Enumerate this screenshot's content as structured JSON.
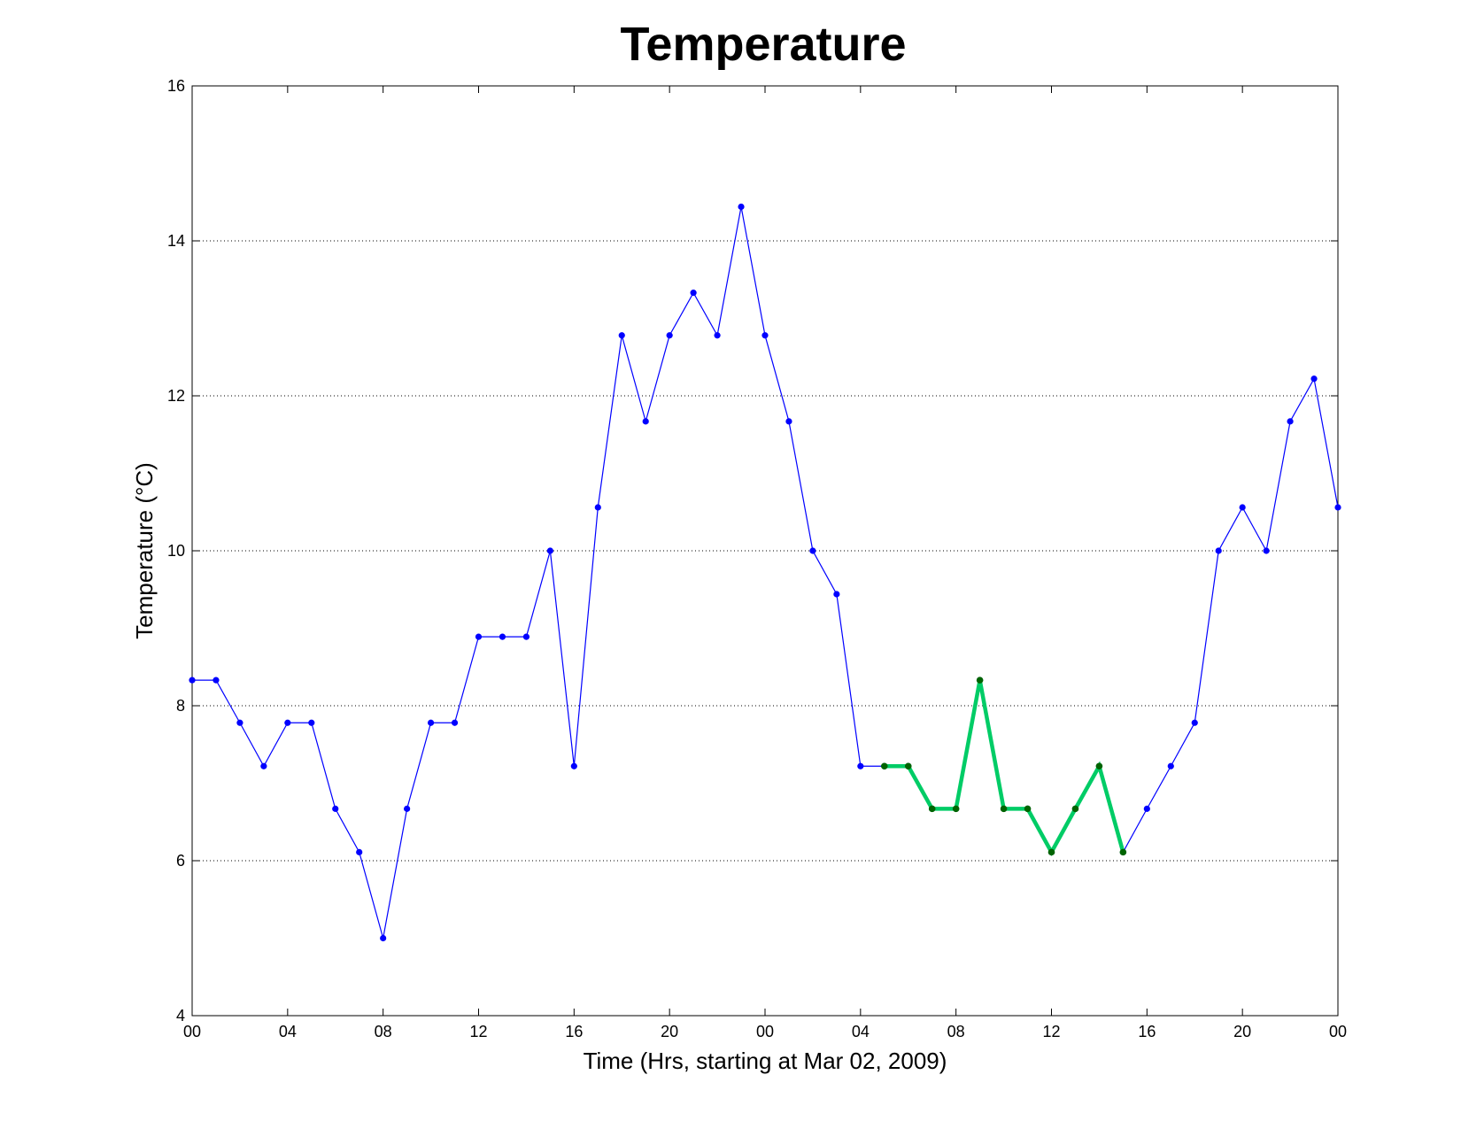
{
  "chart_data": {
    "type": "line",
    "title": "Temperature",
    "xlabel": "Time (Hrs, starting at Mar 02, 2009)",
    "ylabel": "Temperature (°C)",
    "xlim": [
      0,
      48
    ],
    "ylim": [
      4,
      16
    ],
    "grid": "horizontal dotted",
    "x_ticks": [
      {
        "value": 0,
        "label": "00"
      },
      {
        "value": 4,
        "label": "04"
      },
      {
        "value": 8,
        "label": "08"
      },
      {
        "value": 12,
        "label": "12"
      },
      {
        "value": 16,
        "label": "16"
      },
      {
        "value": 20,
        "label": "20"
      },
      {
        "value": 24,
        "label": "00"
      },
      {
        "value": 28,
        "label": "04"
      },
      {
        "value": 32,
        "label": "08"
      },
      {
        "value": 36,
        "label": "12"
      },
      {
        "value": 40,
        "label": "16"
      },
      {
        "value": 44,
        "label": "20"
      },
      {
        "value": 48,
        "label": "00"
      }
    ],
    "y_ticks": [
      4,
      6,
      8,
      10,
      12,
      14,
      16
    ],
    "series": [
      {
        "color": "#0000ff",
        "x": [
          0,
          1,
          2,
          3,
          4,
          5,
          6,
          7,
          8,
          9,
          10,
          11,
          12,
          13,
          14,
          15,
          16,
          17,
          18,
          19,
          20,
          21,
          22,
          23,
          24,
          25,
          26,
          27,
          28,
          29,
          30,
          31,
          32,
          33,
          34,
          35,
          36,
          37,
          38,
          39,
          40,
          41,
          42,
          43,
          44,
          45,
          46,
          47,
          48
        ],
        "y": [
          8.33,
          8.33,
          7.78,
          7.22,
          7.78,
          7.78,
          6.67,
          6.11,
          5.0,
          6.67,
          7.78,
          7.78,
          8.89,
          8.89,
          8.89,
          10.0,
          7.22,
          10.56,
          12.78,
          11.67,
          12.78,
          13.33,
          12.78,
          14.44,
          12.78,
          11.67,
          10.0,
          9.44,
          7.22,
          7.22,
          7.22,
          6.67,
          6.67,
          8.33,
          6.67,
          6.67,
          6.11,
          6.67,
          7.22,
          6.11,
          6.67,
          7.22,
          7.78,
          10.0,
          10.56,
          10.0,
          11.67,
          12.22,
          10.56
        ]
      },
      {
        "color": "#00cc66",
        "marker_color": "#006400",
        "x": [
          29,
          30,
          31,
          32,
          33,
          34,
          35,
          36,
          37,
          38,
          39
        ],
        "y": [
          7.22,
          7.22,
          6.67,
          6.67,
          8.33,
          6.67,
          6.67,
          6.11,
          6.67,
          7.22,
          6.11
        ]
      }
    ]
  }
}
